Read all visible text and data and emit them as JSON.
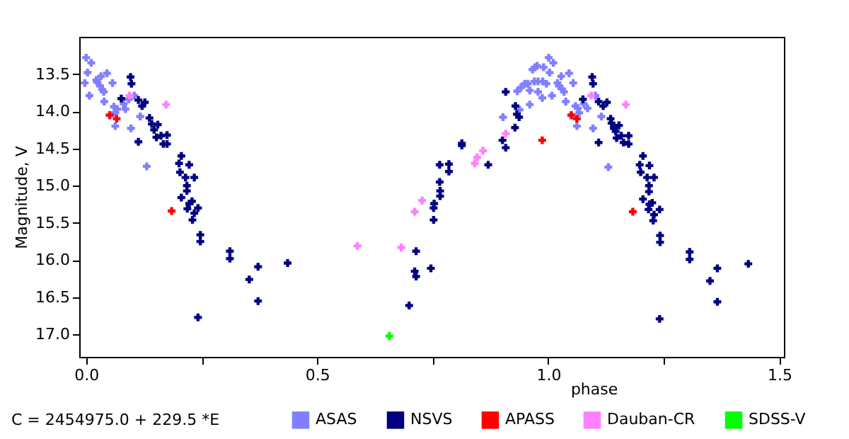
{
  "chart_data": {
    "type": "scatter",
    "xlabel": "phase",
    "ylabel": "Magnitude, V",
    "marker": "cross",
    "legend": "bottom",
    "xlim": [
      -0.015,
      1.51
    ],
    "ylim": [
      17.3,
      13.0
    ],
    "xticks": [
      {
        "value": 0,
        "label": "0.0"
      },
      {
        "value": 0.25,
        "label": null
      },
      {
        "value": 0.5,
        "label": "0.5"
      },
      {
        "value": 0.75,
        "label": null
      },
      {
        "value": 1,
        "label": "1.0"
      },
      {
        "value": 1.25,
        "label": null
      },
      {
        "value": 1.5,
        "label": "1.5"
      }
    ],
    "yticks": [
      {
        "value": 13.5,
        "label": "13.5"
      },
      {
        "value": 14,
        "label": "14.0"
      },
      {
        "value": 14.5,
        "label": "14.5"
      },
      {
        "value": 15,
        "label": "15.0"
      },
      {
        "value": 15.5,
        "label": "15.5"
      },
      {
        "value": 16,
        "label": "16.0"
      },
      {
        "value": 16.5,
        "label": "16.5"
      },
      {
        "value": 17,
        "label": "17.0"
      }
    ],
    "annotations": [
      "C = 2454975.0 + 229.5 *E"
    ],
    "series": [
      {
        "name": "ASAS",
        "color": "#8080ff",
        "x": [
          0.0,
          0.011,
          -0.003,
          0.007,
          0.032,
          0.045,
          0.024,
          0.03,
          0.035,
          0.038,
          0.039,
          0.057,
          0.06,
          0.067,
          0.063,
          0.063,
          0.085,
          0.097,
          0.131,
          0.051,
          0.003,
          0.022,
          0.081,
          0.117,
          0.092,
          0.104,
          1.001,
          1.011,
          0.971,
          0.976,
          0.966,
          0.99,
          0.988,
          0.996,
          0.978,
          0.97,
          0.949,
          0.956,
          0.941,
          0.96,
          0.978,
          0.987,
          1.008,
          1.028,
          1.045,
          1.02,
          1.023,
          1.03,
          1.034,
          1.038,
          1.054,
          1.059,
          1.064,
          1.067,
          1.062,
          1.085,
          1.097,
          1.13,
          0.902,
          0.933,
          0.938,
          0.96,
          1.05,
          1.003,
          1.077,
          1.115,
          1.102
        ],
        "values": [
          13.28,
          13.35,
          13.62,
          13.79,
          13.53,
          13.49,
          13.61,
          13.66,
          13.71,
          13.74,
          13.87,
          13.62,
          13.94,
          13.97,
          14.02,
          14.2,
          13.97,
          14.23,
          14.74,
          14.06,
          13.48,
          13.58,
          13.9,
          14.07,
          13.84,
          13.79,
          13.28,
          13.35,
          13.41,
          13.39,
          13.44,
          13.41,
          13.6,
          13.63,
          13.6,
          13.6,
          13.63,
          13.63,
          13.68,
          13.72,
          13.74,
          13.82,
          13.79,
          13.53,
          13.49,
          13.62,
          13.66,
          13.7,
          13.74,
          13.87,
          13.62,
          13.93,
          13.96,
          14.02,
          14.2,
          13.96,
          14.23,
          14.75,
          14.08,
          13.73,
          13.98,
          13.91,
          14.06,
          13.48,
          13.9,
          14.07,
          13.79
        ]
      },
      {
        "name": "NSVS",
        "color": "#000080",
        "x": [
          0.096,
          0.098,
          0.076,
          0.113,
          0.127,
          0.121,
          0.113,
          0.137,
          0.142,
          0.147,
          0.155,
          0.152,
          0.162,
          0.167,
          0.175,
          0.175,
          0.206,
          0.201,
          0.203,
          0.223,
          0.215,
          0.234,
          0.218,
          0.218,
          0.206,
          0.229,
          0.223,
          0.219,
          0.234,
          0.23,
          0.242,
          0.247,
          0.247,
          0.311,
          0.311,
          0.372,
          0.353,
          0.372,
          0.436,
          0.242,
          0.699,
          0.714,
          0.711,
          0.714,
          0.746,
          0.752,
          0.752,
          0.753,
          0.766,
          0.766,
          0.765,
          0.765,
          0.785,
          0.785,
          0.813,
          0.813,
          0.87,
          0.901,
          0.908,
          0.928,
          0.929,
          0.932,
          0.937,
          0.908,
          1.095,
          1.097,
          1.075,
          1.109,
          1.119,
          1.127,
          1.109,
          1.135,
          1.137,
          1.142,
          1.146,
          1.153,
          1.158,
          1.148,
          1.163,
          1.174,
          1.174,
          1.205,
          1.198,
          1.2,
          1.219,
          1.214,
          1.229,
          1.218,
          1.218,
          1.205,
          1.225,
          1.219,
          1.217,
          1.229,
          1.227,
          1.241,
          1.242,
          1.242,
          1.306,
          1.306,
          1.366,
          1.35,
          1.366,
          1.433,
          1.241
        ],
        "values": [
          13.54,
          13.63,
          13.83,
          13.85,
          13.88,
          13.93,
          14.41,
          14.09,
          14.17,
          14.25,
          14.18,
          14.35,
          14.33,
          14.44,
          14.32,
          14.44,
          14.6,
          14.7,
          14.82,
          14.72,
          14.89,
          14.89,
          15.0,
          15.07,
          15.16,
          15.21,
          15.24,
          15.31,
          15.37,
          15.46,
          15.3,
          15.66,
          15.75,
          15.88,
          15.98,
          16.09,
          16.26,
          16.55,
          16.04,
          16.77,
          16.61,
          15.88,
          16.15,
          16.22,
          16.11,
          15.46,
          15.3,
          15.24,
          15.14,
          15.07,
          14.95,
          14.72,
          14.81,
          14.71,
          14.43,
          14.46,
          14.72,
          14.39,
          14.49,
          14.22,
          13.93,
          14.04,
          14.08,
          13.74,
          13.54,
          13.63,
          13.84,
          13.87,
          13.93,
          13.88,
          14.42,
          14.1,
          14.16,
          14.23,
          14.27,
          14.19,
          14.33,
          14.36,
          14.42,
          14.33,
          14.44,
          14.6,
          14.72,
          14.82,
          14.73,
          14.89,
          14.89,
          15.0,
          15.08,
          15.18,
          15.23,
          15.25,
          15.32,
          15.39,
          15.47,
          15.32,
          15.67,
          15.76,
          15.89,
          15.99,
          16.11,
          16.28,
          16.56,
          16.05,
          16.79
        ]
      },
      {
        "name": "APASS",
        "color": "#ff0000",
        "x": [
          0.051,
          0.066,
          0.185,
          0.987,
          1.05,
          1.062,
          1.183
        ],
        "values": [
          14.05,
          14.1,
          15.34,
          14.39,
          14.05,
          14.1,
          15.35
        ]
      },
      {
        "name": "Dauban-CR",
        "color": "#ff80ff",
        "x": [
          0.094,
          0.173,
          0.587,
          0.682,
          0.711,
          0.727,
          0.841,
          0.846,
          0.859,
          0.908,
          1.093,
          1.168
        ],
        "values": [
          13.79,
          13.91,
          15.81,
          15.83,
          15.35,
          15.2,
          14.7,
          14.62,
          14.53,
          14.3,
          13.79,
          13.91
        ]
      },
      {
        "name": "SDSS-V",
        "color": "#00ff00",
        "x": [
          0.656
        ],
        "values": [
          17.02
        ]
      }
    ]
  }
}
